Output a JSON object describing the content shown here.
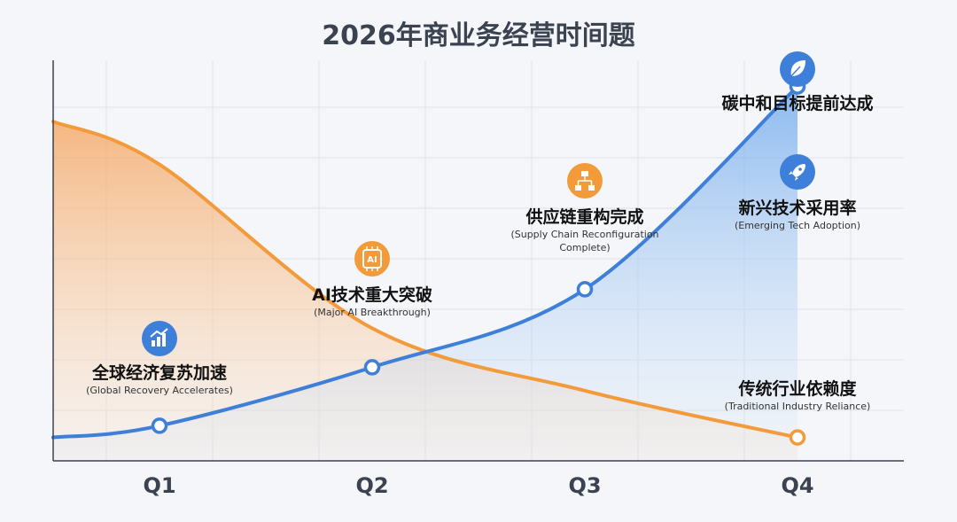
{
  "chart_data": {
    "type": "line",
    "title": "2026年商业务经营时间题",
    "xlabel": "",
    "ylabel": "",
    "categories": [
      "Q1",
      "Q2",
      "Q3",
      "Q4"
    ],
    "ylim": [
      0,
      100
    ],
    "grid": true,
    "series": [
      {
        "name": "新兴技术采用率",
        "subtitle": "(Emerging Tech Adoption)",
        "color": "#3d7fd9",
        "values": [
          9,
          24,
          44,
          96
        ],
        "edge_values": [
          6,
          96
        ],
        "filled": true
      },
      {
        "name": "传统行业依赖度",
        "subtitle": "(Traditional Industry Reliance)",
        "color": "#f39a3a",
        "values": [
          76,
          34,
          18,
          6
        ],
        "edge_values": [
          87,
          6
        ],
        "filled": true
      }
    ],
    "annotations": [
      {
        "title": "全球经济复苏加速",
        "subtitle": "(Global Recovery Accelerates)",
        "icon": "chart-trend-icon",
        "category": 0
      },
      {
        "title": "AI技术重大突破",
        "subtitle": "(Major AI Breakthrough)",
        "icon": "ai-chip-icon",
        "category": 1
      },
      {
        "title": "供应链重构完成",
        "subtitle": "(Supply Chain Reconfiguration",
        "subtitle2": "Complete)",
        "icon": "network-icon",
        "category": 2
      },
      {
        "title": "碳中和目标提前达成",
        "subtitle": "",
        "icon": "leaf-icon",
        "category": 3
      }
    ],
    "icon_labels": {
      "ai_chip": "AI"
    }
  }
}
